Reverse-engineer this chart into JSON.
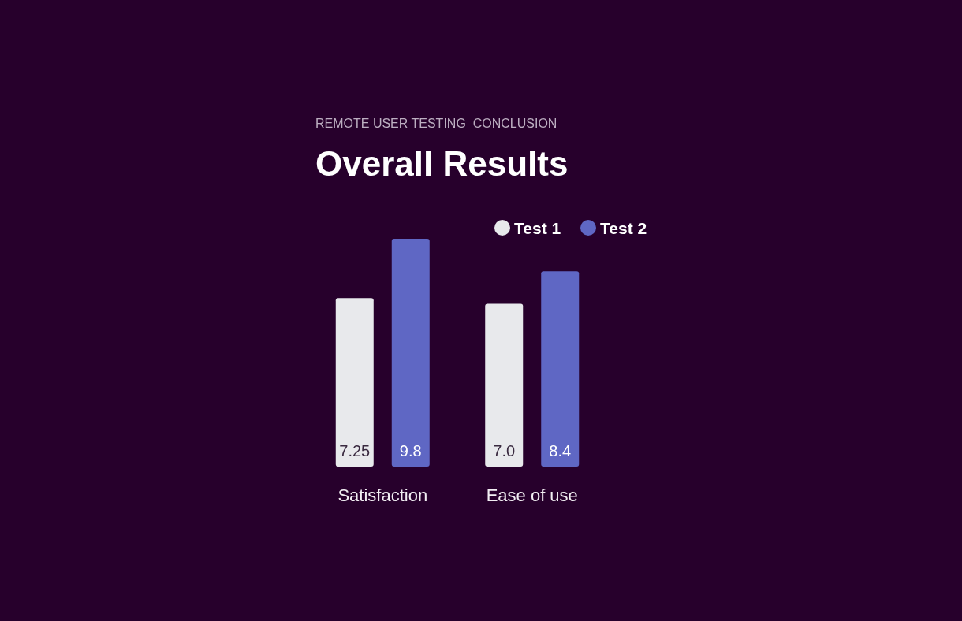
{
  "chart_data": {
    "type": "bar",
    "title": "Overall Results",
    "subtitle": "REMOTE USER TESTING  CONCLUSION",
    "categories": [
      "Satisfaction",
      "Ease of use"
    ],
    "series": [
      {
        "name": "Test 1",
        "color": "#e8e9ec",
        "values": [
          7.25,
          7.0
        ],
        "value_labels": [
          "7.25",
          "7.0"
        ]
      },
      {
        "name": "Test 2",
        "color": "#5f67c4",
        "values": [
          9.8,
          8.4
        ],
        "value_labels": [
          "9.8",
          "8.4"
        ]
      }
    ],
    "legend": "top right"
  }
}
